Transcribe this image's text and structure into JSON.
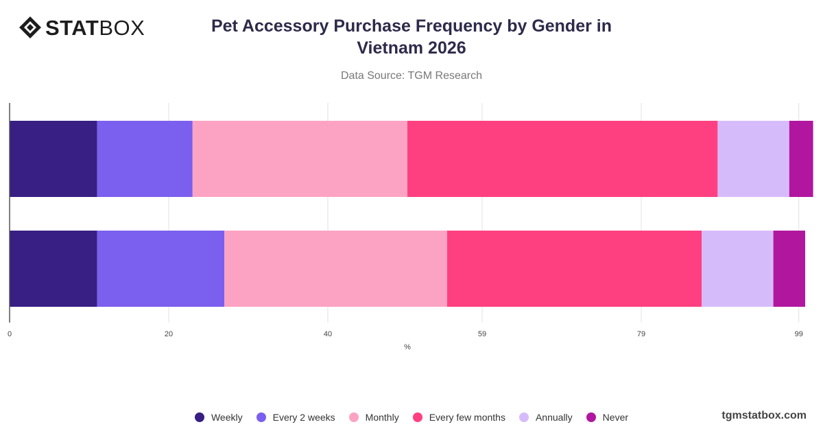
{
  "brand": {
    "logo_strong": "STAT",
    "logo_light": "BOX",
    "watermark": "tgmstatbox.com"
  },
  "chart_data": {
    "type": "bar",
    "orientation": "horizontal",
    "stacked": true,
    "title": "Pet Accessory Purchase Frequency by Gender in Vietnam 2026",
    "subtitle": "Data Source: TGM Research",
    "xlabel": "%",
    "ylabel": "",
    "xlim": [
      0,
      100
    ],
    "x_ticks": [
      "0",
      "20",
      "40",
      "59",
      "79",
      "99"
    ],
    "x_tick_values": [
      0,
      20,
      40,
      59.4,
      79.4,
      99.2
    ],
    "categories": [
      "",
      ""
    ],
    "grid": true,
    "legend_position": "bottom",
    "series": [
      {
        "name": "Weekly",
        "color": "#371f83",
        "values": [
          11,
          11
        ]
      },
      {
        "name": "Every 2 weeks",
        "color": "#7b5fee",
        "values": [
          12,
          16
        ]
      },
      {
        "name": "Monthly",
        "color": "#fca3c3",
        "values": [
          27,
          28
        ]
      },
      {
        "name": "Every few months",
        "color": "#fe4081",
        "values": [
          39,
          32
        ]
      },
      {
        "name": "Annually",
        "color": "#d6bbfb",
        "values": [
          9,
          9
        ]
      },
      {
        "name": "Never",
        "color": "#b1169f",
        "values": [
          3,
          4
        ]
      }
    ]
  }
}
